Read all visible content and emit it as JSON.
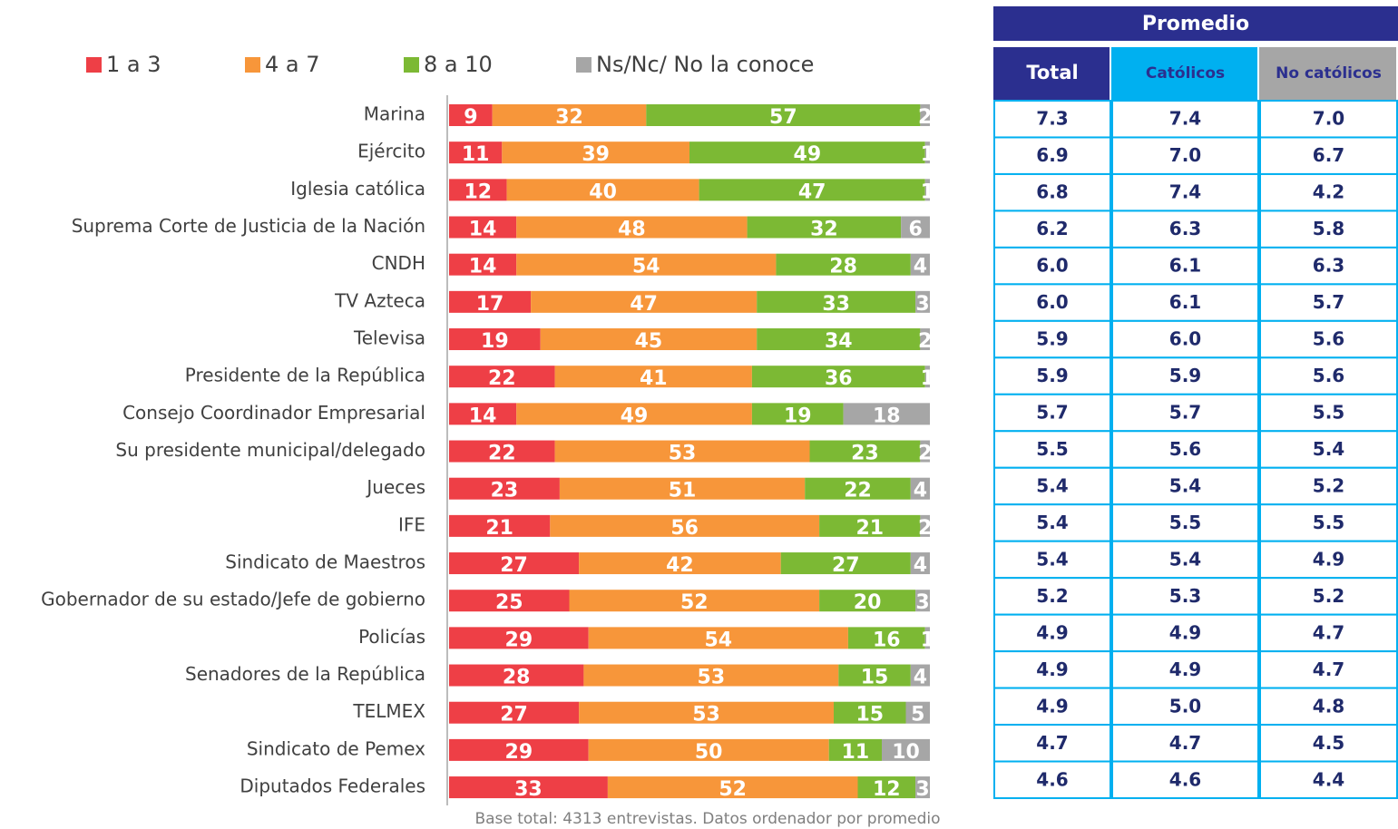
{
  "chart_data": {
    "type": "bar",
    "orientation": "horizontal",
    "stacked": true,
    "categories": [
      "Marina",
      "Ejército",
      "Iglesia católica",
      "Suprema Corte de Justicia de la Nación",
      "CNDH",
      "TV Azteca",
      "Televisa",
      "Presidente de la República",
      "Consejo Coordinador Empresarial",
      "Su presidente municipal/delegado",
      "Jueces",
      "IFE",
      "Sindicato de Maestros",
      "Gobernador de su estado/Jefe de gobierno",
      "Policías",
      "Senadores de la República",
      "TELMEX",
      "Sindicato de Pemex",
      "Diputados Federales"
    ],
    "series": [
      {
        "name": "1 a 3",
        "color": "#ee3f46",
        "values": [
          9,
          11,
          12,
          14,
          14,
          17,
          19,
          22,
          14,
          22,
          23,
          21,
          27,
          25,
          29,
          28,
          27,
          29,
          33
        ]
      },
      {
        "name": "4 a 7",
        "color": "#f7963a",
        "values": [
          32,
          39,
          40,
          48,
          54,
          47,
          45,
          41,
          49,
          53,
          51,
          56,
          42,
          52,
          54,
          53,
          53,
          50,
          52
        ]
      },
      {
        "name": "8 a 10",
        "color": "#7cb934",
        "values": [
          57,
          49,
          47,
          32,
          28,
          33,
          34,
          36,
          19,
          23,
          22,
          21,
          27,
          20,
          16,
          15,
          15,
          11,
          12
        ]
      },
      {
        "name": "Ns/Nc/ No la conoce",
        "color": "#a6a6a6",
        "values": [
          2,
          1,
          1,
          6,
          4,
          3,
          2,
          1,
          18,
          2,
          4,
          2,
          4,
          3,
          1,
          4,
          5,
          10,
          3
        ]
      }
    ],
    "legend": "top"
  },
  "table": {
    "title": "Promedio",
    "columns": [
      "Total",
      "Católicos",
      "No católicos"
    ],
    "rows": [
      [
        "7.3",
        "7.4",
        "7.0"
      ],
      [
        "6.9",
        "7.0",
        "6.7"
      ],
      [
        "6.8",
        "7.4",
        "4.2"
      ],
      [
        "6.2",
        "6.3",
        "5.8"
      ],
      [
        "6.0",
        "6.1",
        "6.3"
      ],
      [
        "6.0",
        "6.1",
        "5.7"
      ],
      [
        "5.9",
        "6.0",
        "5.6"
      ],
      [
        "5.9",
        "5.9",
        "5.6"
      ],
      [
        "5.7",
        "5.7",
        "5.5"
      ],
      [
        "5.5",
        "5.6",
        "5.4"
      ],
      [
        "5.4",
        "5.4",
        "5.2"
      ],
      [
        "5.4",
        "5.5",
        "5.5"
      ],
      [
        "5.4",
        "5.4",
        "4.9"
      ],
      [
        "5.2",
        "5.3",
        "5.2"
      ],
      [
        "4.9",
        "4.9",
        "4.7"
      ],
      [
        "4.9",
        "4.9",
        "4.7"
      ],
      [
        "4.9",
        "5.0",
        "4.8"
      ],
      [
        "4.7",
        "4.7",
        "4.5"
      ],
      [
        "4.6",
        "4.6",
        "4.4"
      ]
    ]
  },
  "footnote": "Base total: 4313 entrevistas. Datos ordenador por promedio"
}
